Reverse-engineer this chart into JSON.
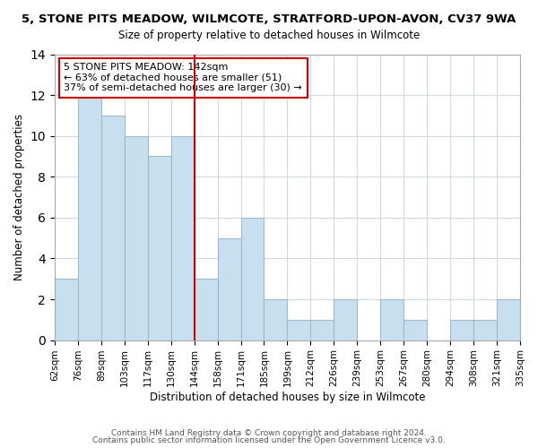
{
  "title1": "5, STONE PITS MEADOW, WILMCOTE, STRATFORD-UPON-AVON, CV37 9WA",
  "title2": "Size of property relative to detached houses in Wilmcote",
  "xlabel": "Distribution of detached houses by size in Wilmcote",
  "ylabel": "Number of detached properties",
  "bin_edges": [
    0,
    1,
    2,
    3,
    4,
    5,
    6,
    7,
    8,
    9,
    10,
    11,
    12,
    13,
    14,
    15,
    16,
    17,
    18,
    19,
    20
  ],
  "bin_labels": [
    "62sqm",
    "76sqm",
    "89sqm",
    "103sqm",
    "117sqm",
    "130sqm",
    "144sqm",
    "158sqm",
    "171sqm",
    "185sqm",
    "199sqm",
    "212sqm",
    "226sqm",
    "239sqm",
    "253sqm",
    "267sqm",
    "280sqm",
    "294sqm",
    "308sqm",
    "321sqm",
    "335sqm"
  ],
  "bar_heights": [
    3,
    12,
    11,
    10,
    9,
    10,
    3,
    5,
    6,
    2,
    1,
    1,
    2,
    0,
    2,
    1,
    0,
    1,
    1,
    2
  ],
  "bar_color": "#c8dff0",
  "bar_edge_color": "#a0b8d0",
  "vline_x": 6,
  "vline_color": "#cc0000",
  "annotation_title": "5 STONE PITS MEADOW: 142sqm",
  "annotation_line1": "← 63% of detached houses are smaller (51)",
  "annotation_line2": "37% of semi-detached houses are larger (30) →",
  "annotation_box_color": "#ffffff",
  "annotation_box_edge": "#cc0000",
  "ylim": [
    0,
    14
  ],
  "yticks": [
    0,
    2,
    4,
    6,
    8,
    10,
    12,
    14
  ],
  "footer1": "Contains HM Land Registry data © Crown copyright and database right 2024.",
  "footer2": "Contains public sector information licensed under the Open Government Licence v3.0.",
  "background_color": "#ffffff",
  "grid_color": "#d0d8e0"
}
